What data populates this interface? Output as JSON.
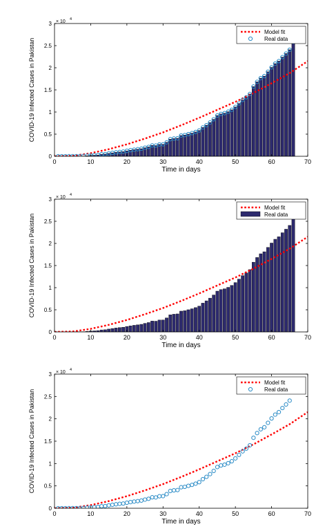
{
  "chart_data": [
    {
      "type": "bar",
      "panel": "top",
      "xlabel": "Time in days",
      "ylabel": "COVID-19 Infected Cases in Pakistan",
      "exponent_label": "× 10",
      "exponent_power": "4",
      "xlim": [
        0,
        70
      ],
      "ylim": [
        0,
        30000
      ],
      "x_ticks": [
        "0",
        "10",
        "20",
        "30",
        "40",
        "50",
        "60",
        "70"
      ],
      "y_ticks": [
        "0",
        "0.5",
        "1",
        "1.5",
        "2",
        "2.5",
        "3"
      ],
      "legend_position": "top-right",
      "legend": {
        "fit_label": "Model fit",
        "data_label": "Real data",
        "data_marker": "circle"
      },
      "show_bars": true,
      "show_circles": true,
      "series": [
        {
          "name": "Real data",
          "x": [
            1,
            2,
            3,
            4,
            5,
            6,
            7,
            8,
            9,
            10,
            11,
            12,
            13,
            14,
            15,
            16,
            17,
            18,
            19,
            20,
            21,
            22,
            23,
            24,
            25,
            26,
            27,
            28,
            29,
            30,
            31,
            32,
            33,
            34,
            35,
            36,
            37,
            38,
            39,
            40,
            41,
            42,
            43,
            44,
            45,
            46,
            47,
            48,
            49,
            50,
            51,
            52,
            53,
            54,
            55,
            56,
            57,
            58,
            59,
            60,
            61,
            62,
            63,
            64,
            65,
            66
          ],
          "values": [
            4,
            4,
            7,
            14,
            21,
            28,
            31,
            53,
            136,
            187,
            237,
            301,
            453,
            495,
            645,
            776,
            887,
            990,
            1057,
            1235,
            1376,
            1495,
            1597,
            1717,
            1938,
            2118,
            2450,
            2421,
            2686,
            2708,
            3157,
            3864,
            4001,
            4072,
            4695,
            4788,
            5011,
            5230,
            5496,
            5837,
            6505,
            7025,
            7638,
            8348,
            9216,
            9565,
            9749,
            10076,
            10513,
            11155,
            11940,
            12723,
            13328,
            14079,
            15759,
            16817,
            17657,
            18114,
            19103,
            20084,
            20941,
            21501,
            22413,
            23213,
            24073,
            25837
          ]
        },
        {
          "name": "Model fit",
          "type": "line",
          "style": "dotted",
          "x": [
            0,
            5,
            10,
            15,
            20,
            25,
            30,
            35,
            40,
            45,
            50,
            55,
            60,
            65,
            70
          ],
          "values": [
            0,
            100,
            700,
            1600,
            2700,
            4000,
            5400,
            7000,
            8700,
            10500,
            12300,
            14300,
            16500,
            18800,
            21500
          ]
        }
      ],
      "colors": {
        "fit": "#ff0000",
        "bar_fill": "#2d2a6e",
        "circle": "#2a8bc6"
      }
    },
    {
      "type": "bar",
      "panel": "middle",
      "xlabel": "Time in days",
      "ylabel": "COVID-19 Infected Cases in Pakistan",
      "exponent_label": "× 10",
      "exponent_power": "4",
      "xlim": [
        0,
        70
      ],
      "ylim": [
        0,
        30000
      ],
      "x_ticks": [
        "0",
        "10",
        "20",
        "30",
        "40",
        "50",
        "60",
        "70"
      ],
      "y_ticks": [
        "0",
        "0.5",
        "1",
        "1.5",
        "2",
        "2.5",
        "3"
      ],
      "legend_position": "top-right",
      "legend": {
        "fit_label": "Model fit",
        "data_label": "Real data",
        "data_marker": "bar"
      },
      "show_bars": true,
      "show_circles": false,
      "series": [
        {
          "name": "Real data",
          "x": [
            1,
            2,
            3,
            4,
            5,
            6,
            7,
            8,
            9,
            10,
            11,
            12,
            13,
            14,
            15,
            16,
            17,
            18,
            19,
            20,
            21,
            22,
            23,
            24,
            25,
            26,
            27,
            28,
            29,
            30,
            31,
            32,
            33,
            34,
            35,
            36,
            37,
            38,
            39,
            40,
            41,
            42,
            43,
            44,
            45,
            46,
            47,
            48,
            49,
            50,
            51,
            52,
            53,
            54,
            55,
            56,
            57,
            58,
            59,
            60,
            61,
            62,
            63,
            64,
            65,
            66
          ],
          "values": [
            4,
            4,
            7,
            14,
            21,
            28,
            31,
            53,
            136,
            187,
            237,
            301,
            453,
            495,
            645,
            776,
            887,
            990,
            1057,
            1235,
            1376,
            1495,
            1597,
            1717,
            1938,
            2118,
            2450,
            2421,
            2686,
            2708,
            3157,
            3864,
            4001,
            4072,
            4695,
            4788,
            5011,
            5230,
            5496,
            5837,
            6505,
            7025,
            7638,
            8348,
            9216,
            9565,
            9749,
            10076,
            10513,
            11155,
            11940,
            12723,
            13328,
            14079,
            15759,
            16817,
            17657,
            18114,
            19103,
            20084,
            20941,
            21501,
            22413,
            23213,
            24073,
            25837
          ]
        },
        {
          "name": "Model fit",
          "type": "line",
          "style": "dotted",
          "x": [
            0,
            5,
            10,
            15,
            20,
            25,
            30,
            35,
            40,
            45,
            50,
            55,
            60,
            65,
            70
          ],
          "values": [
            0,
            100,
            700,
            1600,
            2700,
            4000,
            5400,
            7000,
            8700,
            10500,
            12300,
            14300,
            16500,
            18800,
            21500
          ]
        }
      ],
      "colors": {
        "fit": "#ff0000",
        "bar_fill": "#2d2a6e",
        "circle": "#2a8bc6"
      }
    },
    {
      "type": "scatter",
      "panel": "bottom",
      "xlabel": "Time in days",
      "ylabel": "COVID-19 Infected Cases in Pakistan",
      "exponent_label": "× 10",
      "exponent_power": "4",
      "xlim": [
        0,
        70
      ],
      "ylim": [
        0,
        30000
      ],
      "x_ticks": [
        "0",
        "10",
        "20",
        "30",
        "40",
        "50",
        "60",
        "70"
      ],
      "y_ticks": [
        "0",
        "0.5",
        "1",
        "1.5",
        "2",
        "2.5",
        "3"
      ],
      "legend_position": "top-right",
      "legend": {
        "fit_label": "Model fit",
        "data_label": "Real data",
        "data_marker": "circle"
      },
      "show_bars": false,
      "show_circles": true,
      "series": [
        {
          "name": "Real data",
          "x": [
            1,
            2,
            3,
            4,
            5,
            6,
            7,
            8,
            9,
            10,
            11,
            12,
            13,
            14,
            15,
            16,
            17,
            18,
            19,
            20,
            21,
            22,
            23,
            24,
            25,
            26,
            27,
            28,
            29,
            30,
            31,
            32,
            33,
            34,
            35,
            36,
            37,
            38,
            39,
            40,
            41,
            42,
            43,
            44,
            45,
            46,
            47,
            48,
            49,
            50,
            51,
            52,
            53,
            54,
            55,
            56,
            57,
            58,
            59,
            60,
            61,
            62,
            63,
            64,
            65
          ],
          "values": [
            4,
            4,
            7,
            14,
            21,
            28,
            31,
            53,
            136,
            187,
            237,
            301,
            453,
            495,
            645,
            776,
            887,
            990,
            1057,
            1235,
            1376,
            1495,
            1597,
            1717,
            1938,
            2118,
            2450,
            2421,
            2686,
            2708,
            3157,
            3864,
            4001,
            4072,
            4695,
            4788,
            5011,
            5230,
            5496,
            5837,
            6505,
            7025,
            7638,
            8348,
            9216,
            9565,
            9749,
            10076,
            10513,
            11155,
            11940,
            12723,
            13328,
            14079,
            15759,
            16817,
            17657,
            18114,
            19103,
            20084,
            20941,
            21501,
            22413,
            23213,
            24073
          ]
        },
        {
          "name": "Model fit",
          "type": "line",
          "style": "dotted",
          "x": [
            0,
            5,
            10,
            15,
            20,
            25,
            30,
            35,
            40,
            45,
            50,
            55,
            60,
            65,
            70
          ],
          "values": [
            0,
            100,
            700,
            1600,
            2700,
            4000,
            5400,
            7000,
            8700,
            10500,
            12300,
            14300,
            16500,
            18800,
            21500
          ]
        }
      ],
      "colors": {
        "fit": "#ff0000",
        "bar_fill": "#2d2a6e",
        "circle": "#2a8bc6"
      }
    }
  ]
}
